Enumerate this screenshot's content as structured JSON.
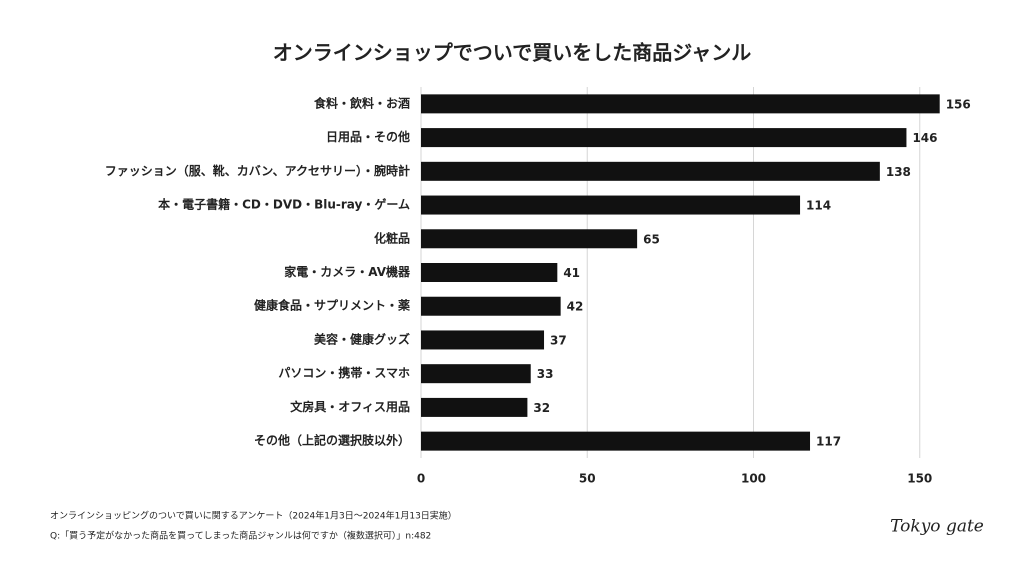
{
  "chart_data": {
    "type": "bar",
    "orientation": "horizontal",
    "title": "オンラインショップでついで買いをした商品ジャンル",
    "categories": [
      "食料・飲料・お酒",
      "日用品・その他",
      "ファッション（服、靴、カバン、アクセサリー）・腕時計",
      "本・電子書籍・CD・DVD・Blu-ray・ゲーム",
      "化粧品",
      "家電・カメラ・AV機器",
      "健康食品・サプリメント・薬",
      "美容・健康グッズ",
      "パソコン・携帯・スマホ",
      "文房具・オフィス用品",
      "その他（上記の選択肢以外）"
    ],
    "values": [
      156,
      146,
      138,
      114,
      65,
      41,
      42,
      37,
      33,
      32,
      117
    ],
    "color": "#111111",
    "xlim": [
      0,
      160
    ],
    "xticks": [
      0,
      50,
      100,
      150
    ],
    "grid": true,
    "notes": [
      "オンラインショッピングのついで買いに関するアンケート（2024年1月3日〜2024年1月13日実施）",
      "Q:「買う予定がなかった商品を買ってしまった商品ジャンルは何ですか（複数選択可）」n:482"
    ],
    "logo": "Tokyo gate"
  }
}
